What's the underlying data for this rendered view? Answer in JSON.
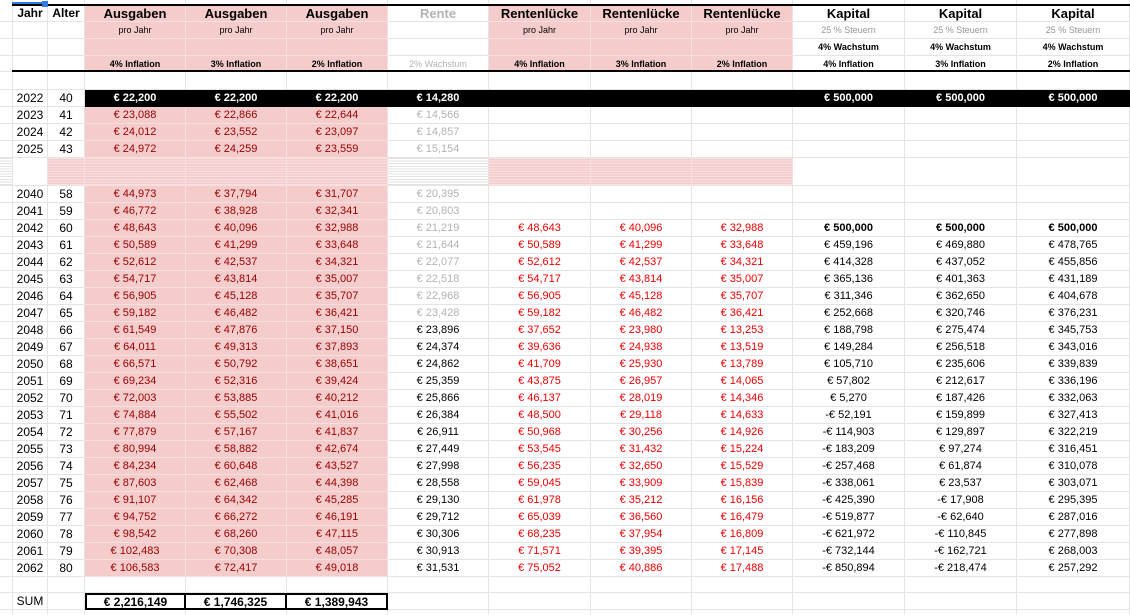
{
  "colors": {
    "pink_fill": "#f4cccc",
    "expense_text": "#990000",
    "gap_text": "#f00000",
    "muted_text": "#b3b3b3",
    "highlight_row_bg": "#000000",
    "selection_blue": "#2f7ae5"
  },
  "sheet": {
    "header": {
      "jahr": "Jahr",
      "alter": "Alter"
    },
    "columns": [
      {
        "id": "a4",
        "title": "Ausgaben",
        "sub1": "pro Jahr",
        "sub2": "",
        "sub3": "4% Inflation"
      },
      {
        "id": "a3",
        "title": "Ausgaben",
        "sub1": "pro Jahr",
        "sub2": "",
        "sub3": "3% Inflation"
      },
      {
        "id": "a2",
        "title": "Ausgaben",
        "sub1": "pro Jahr",
        "sub2": "",
        "sub3": "2% Inflation"
      },
      {
        "id": "rente",
        "title": "Rente",
        "sub1": "",
        "sub2": "",
        "sub3": "2% Wachstum"
      },
      {
        "id": "rl4",
        "title": "Rentenlücke",
        "sub1": "pro Jahr",
        "sub2": "",
        "sub3": "4% Inflation"
      },
      {
        "id": "rl3",
        "title": "Rentenlücke",
        "sub1": "pro Jahr",
        "sub2": "",
        "sub3": "3% Inflation"
      },
      {
        "id": "rl2",
        "title": "Rentenlücke",
        "sub1": "pro Jahr",
        "sub2": "",
        "sub3": "2% Inflation"
      },
      {
        "id": "k4",
        "title": "Kapital",
        "sub1": "25 % Steuern",
        "sub2": "4% Wachstum",
        "sub3": "4% Inflation"
      },
      {
        "id": "k3",
        "title": "Kapital",
        "sub1": "25 % Steuern",
        "sub2": "4% Wachstum",
        "sub3": "3% Inflation"
      },
      {
        "id": "k2",
        "title": "Kapital",
        "sub1": "25 % Steuern",
        "sub2": "4% Wachstum",
        "sub3": "2% Inflation"
      }
    ],
    "rows": [
      {
        "type": "d",
        "year": "2022",
        "age": "40",
        "a4": "€ 22,200",
        "a3": "€ 22,200",
        "a2": "€ 22,200",
        "rente": "€ 14,280",
        "rl4": "",
        "rl3": "",
        "rl2": "",
        "k4": "€ 500,000",
        "k3": "€ 500,000",
        "k2": "€ 500,000"
      },
      {
        "type": "d",
        "year": "2023",
        "age": "41",
        "a4": "€ 23,088",
        "a3": "€ 22,866",
        "a2": "€ 22,644",
        "rente": "€ 14,566",
        "rl4": "",
        "rl3": "",
        "rl2": "",
        "k4": "",
        "k3": "",
        "k2": ""
      },
      {
        "type": "d",
        "year": "2024",
        "age": "42",
        "a4": "€ 24,012",
        "a3": "€ 23,552",
        "a2": "€ 23,097",
        "rente": "€ 14,857",
        "rl4": "",
        "rl3": "",
        "rl2": "",
        "k4": "",
        "k3": "",
        "k2": ""
      },
      {
        "type": "d",
        "year": "2025",
        "age": "43",
        "a4": "€ 24,972",
        "a3": "€ 24,259",
        "a2": "€ 23,559",
        "rente": "€ 15,154",
        "rl4": "",
        "rl3": "",
        "rl2": "",
        "k4": "",
        "k3": "",
        "k2": ""
      },
      {
        "type": "gap"
      },
      {
        "type": "d",
        "year": "2040",
        "age": "58",
        "a4": "€ 44,973",
        "a3": "€ 37,794",
        "a2": "€ 31,707",
        "rente": "€ 20,395",
        "rl4": "",
        "rl3": "",
        "rl2": "",
        "k4": "",
        "k3": "",
        "k2": ""
      },
      {
        "type": "d",
        "year": "2041",
        "age": "59",
        "a4": "€ 46,772",
        "a3": "€ 38,928",
        "a2": "€ 32,341",
        "rente": "€ 20,803",
        "rl4": "",
        "rl3": "",
        "rl2": "",
        "k4": "",
        "k3": "",
        "k2": ""
      },
      {
        "type": "d",
        "year": "2042",
        "age": "60",
        "a4": "€ 48,643",
        "a3": "€ 40,096",
        "a2": "€ 32,988",
        "rente": "€ 21,219",
        "rl4": "€ 48,643",
        "rl3": "€ 40,096",
        "rl2": "€ 32,988",
        "k4": "€ 500,000",
        "k3": "€ 500,000",
        "k2": "€ 500,000"
      },
      {
        "type": "d",
        "year": "2043",
        "age": "61",
        "a4": "€ 50,589",
        "a3": "€ 41,299",
        "a2": "€ 33,648",
        "rente": "€ 21,644",
        "rl4": "€ 50,589",
        "rl3": "€ 41,299",
        "rl2": "€ 33,648",
        "k4": "€ 459,196",
        "k3": "€ 469,880",
        "k2": "€ 478,765"
      },
      {
        "type": "d",
        "year": "2044",
        "age": "62",
        "a4": "€ 52,612",
        "a3": "€ 42,537",
        "a2": "€ 34,321",
        "rente": "€ 22,077",
        "rl4": "€ 52,612",
        "rl3": "€ 42,537",
        "rl2": "€ 34,321",
        "k4": "€ 414,328",
        "k3": "€ 437,052",
        "k2": "€ 455,856"
      },
      {
        "type": "d",
        "year": "2045",
        "age": "63",
        "a4": "€ 54,717",
        "a3": "€ 43,814",
        "a2": "€ 35,007",
        "rente": "€ 22,518",
        "rl4": "€ 54,717",
        "rl3": "€ 43,814",
        "rl2": "€ 35,007",
        "k4": "€ 365,136",
        "k3": "€ 401,363",
        "k2": "€ 431,189"
      },
      {
        "type": "d",
        "year": "2046",
        "age": "64",
        "a4": "€ 56,905",
        "a3": "€ 45,128",
        "a2": "€ 35,707",
        "rente": "€ 22,968",
        "rl4": "€ 56,905",
        "rl3": "€ 45,128",
        "rl2": "€ 35,707",
        "k4": "€ 311,346",
        "k3": "€ 362,650",
        "k2": "€ 404,678"
      },
      {
        "type": "d",
        "year": "2047",
        "age": "65",
        "a4": "€ 59,182",
        "a3": "€ 46,482",
        "a2": "€ 36,421",
        "rente": "€ 23,428",
        "rl4": "€ 59,182",
        "rl3": "€ 46,482",
        "rl2": "€ 36,421",
        "k4": "€ 252,668",
        "k3": "€ 320,746",
        "k2": "€ 376,231"
      },
      {
        "type": "d",
        "year": "2048",
        "age": "66",
        "a4": "€ 61,549",
        "a3": "€ 47,876",
        "a2": "€ 37,150",
        "rente": "€ 23,896",
        "rl4": "€ 37,652",
        "rl3": "€ 23,980",
        "rl2": "€ 13,253",
        "k4": "€ 188,798",
        "k3": "€ 275,474",
        "k2": "€ 345,753"
      },
      {
        "type": "d",
        "year": "2049",
        "age": "67",
        "a4": "€ 64,011",
        "a3": "€ 49,313",
        "a2": "€ 37,893",
        "rente": "€ 24,374",
        "rl4": "€ 39,636",
        "rl3": "€ 24,938",
        "rl2": "€ 13,519",
        "k4": "€ 149,284",
        "k3": "€ 256,518",
        "k2": "€ 343,016"
      },
      {
        "type": "d",
        "year": "2050",
        "age": "68",
        "a4": "€ 66,571",
        "a3": "€ 50,792",
        "a2": "€ 38,651",
        "rente": "€ 24,862",
        "rl4": "€ 41,709",
        "rl3": "€ 25,930",
        "rl2": "€ 13,789",
        "k4": "€ 105,710",
        "k3": "€ 235,606",
        "k2": "€ 339,839"
      },
      {
        "type": "d",
        "year": "2051",
        "age": "69",
        "a4": "€ 69,234",
        "a3": "€ 52,316",
        "a2": "€ 39,424",
        "rente": "€ 25,359",
        "rl4": "€ 43,875",
        "rl3": "€ 26,957",
        "rl2": "€ 14,065",
        "k4": "€ 57,802",
        "k3": "€ 212,617",
        "k2": "€ 336,196"
      },
      {
        "type": "d",
        "year": "2052",
        "age": "70",
        "a4": "€ 72,003",
        "a3": "€ 53,885",
        "a2": "€ 40,212",
        "rente": "€ 25,866",
        "rl4": "€ 46,137",
        "rl3": "€ 28,019",
        "rl2": "€ 14,346",
        "k4": "€ 5,270",
        "k3": "€ 187,426",
        "k2": "€ 332,063"
      },
      {
        "type": "d",
        "year": "2053",
        "age": "71",
        "a4": "€ 74,884",
        "a3": "€ 55,502",
        "a2": "€ 41,016",
        "rente": "€ 26,384",
        "rl4": "€ 48,500",
        "rl3": "€ 29,118",
        "rl2": "€ 14,633",
        "k4": "-€ 52,191",
        "k3": "€ 159,899",
        "k2": "€ 327,413"
      },
      {
        "type": "d",
        "year": "2054",
        "age": "72",
        "a4": "€ 77,879",
        "a3": "€ 57,167",
        "a2": "€ 41,837",
        "rente": "€ 26,911",
        "rl4": "€ 50,968",
        "rl3": "€ 30,256",
        "rl2": "€ 14,926",
        "k4": "-€ 114,903",
        "k3": "€ 129,897",
        "k2": "€ 322,219"
      },
      {
        "type": "d",
        "year": "2055",
        "age": "73",
        "a4": "€ 80,994",
        "a3": "€ 58,882",
        "a2": "€ 42,674",
        "rente": "€ 27,449",
        "rl4": "€ 53,545",
        "rl3": "€ 31,432",
        "rl2": "€ 15,224",
        "k4": "-€ 183,209",
        "k3": "€ 97,274",
        "k2": "€ 316,451"
      },
      {
        "type": "d",
        "year": "2056",
        "age": "74",
        "a4": "€ 84,234",
        "a3": "€ 60,648",
        "a2": "€ 43,527",
        "rente": "€ 27,998",
        "rl4": "€ 56,235",
        "rl3": "€ 32,650",
        "rl2": "€ 15,529",
        "k4": "-€ 257,468",
        "k3": "€ 61,874",
        "k2": "€ 310,078"
      },
      {
        "type": "d",
        "year": "2057",
        "age": "75",
        "a4": "€ 87,603",
        "a3": "€ 62,468",
        "a2": "€ 44,398",
        "rente": "€ 28,558",
        "rl4": "€ 59,045",
        "rl3": "€ 33,909",
        "rl2": "€ 15,839",
        "k4": "-€ 338,061",
        "k3": "€ 23,537",
        "k2": "€ 303,071"
      },
      {
        "type": "d",
        "year": "2058",
        "age": "76",
        "a4": "€ 91,107",
        "a3": "€ 64,342",
        "a2": "€ 45,285",
        "rente": "€ 29,130",
        "rl4": "€ 61,978",
        "rl3": "€ 35,212",
        "rl2": "€ 16,156",
        "k4": "-€ 425,390",
        "k3": "-€ 17,908",
        "k2": "€ 295,395"
      },
      {
        "type": "d",
        "year": "2059",
        "age": "77",
        "a4": "€ 94,752",
        "a3": "€ 66,272",
        "a2": "€ 46,191",
        "rente": "€ 29,712",
        "rl4": "€ 65,039",
        "rl3": "€ 36,560",
        "rl2": "€ 16,479",
        "k4": "-€ 519,877",
        "k3": "-€ 62,640",
        "k2": "€ 287,016"
      },
      {
        "type": "d",
        "year": "2060",
        "age": "78",
        "a4": "€ 98,542",
        "a3": "€ 68,260",
        "a2": "€ 47,115",
        "rente": "€ 30,306",
        "rl4": "€ 68,235",
        "rl3": "€ 37,954",
        "rl2": "€ 16,809",
        "k4": "-€ 621,972",
        "k3": "-€ 110,845",
        "k2": "€ 277,898"
      },
      {
        "type": "d",
        "year": "2061",
        "age": "79",
        "a4": "€ 102,483",
        "a3": "€ 70,308",
        "a2": "€ 48,057",
        "rente": "€ 30,913",
        "rl4": "€ 71,571",
        "rl3": "€ 39,395",
        "rl2": "€ 17,145",
        "k4": "-€ 732,144",
        "k3": "-€ 162,721",
        "k2": "€ 268,003"
      },
      {
        "type": "d",
        "year": "2062",
        "age": "80",
        "a4": "€ 106,583",
        "a3": "€ 72,417",
        "a2": "€ 49,018",
        "rente": "€ 31,531",
        "rl4": "€ 75,052",
        "rl3": "€ 40,886",
        "rl2": "€ 17,488",
        "k4": "-€ 850,894",
        "k3": "-€ 218,474",
        "k2": "€ 257,292"
      },
      {
        "type": "blank"
      },
      {
        "type": "sum",
        "label": "SUM",
        "a4": "€ 2,216,149",
        "a3": "€ 1,746,325",
        "a2": "€ 1,389,943"
      }
    ]
  }
}
